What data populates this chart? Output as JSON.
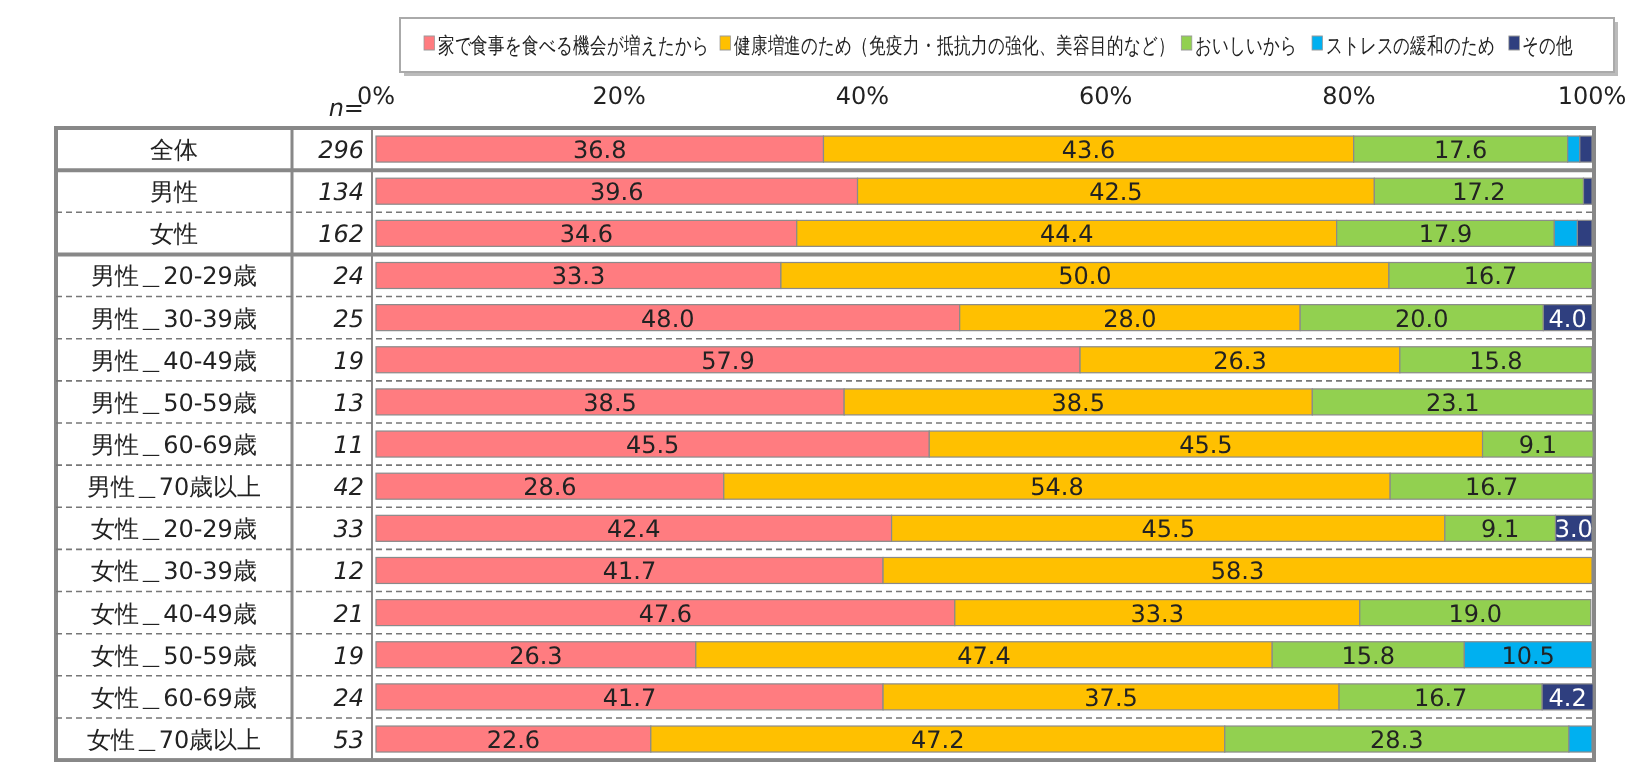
{
  "chart_data": {
    "type": "bar",
    "orientation": "horizontal",
    "stacked": true,
    "legend": "top",
    "grid": false,
    "categories": [
      "全体",
      "男性",
      "女性",
      "男性＿20-29歳",
      "男性＿30-39歳",
      "男性＿40-49歳",
      "男性＿50-59歳",
      "男性＿60-69歳",
      "男性＿70歳以上",
      "女性＿20-29歳",
      "女性＿30-39歳",
      "女性＿40-49歳",
      "女性＿50-59歳",
      "女性＿60-69歳",
      "女性＿70歳以上"
    ],
    "xlim": [
      0,
      100
    ],
    "xticks": [
      {
        "value": 0,
        "label": "0%"
      },
      {
        "value": 20,
        "label": "20%"
      },
      {
        "value": 40,
        "label": "40%"
      },
      {
        "value": 60,
        "label": "60%"
      },
      {
        "value": 80,
        "label": "80%"
      },
      {
        "value": 100,
        "label": "100%"
      }
    ],
    "series": [
      {
        "name": "家で食事を食べる機会が増えたから",
        "color": "#ff7c80",
        "values": [
          36.8,
          39.6,
          34.6,
          33.3,
          48.0,
          57.9,
          38.5,
          45.5,
          28.6,
          42.4,
          41.7,
          47.6,
          26.3,
          41.7,
          22.6
        ],
        "value_labels": [
          "36.8",
          "39.6",
          "34.6",
          "33.3",
          "48.0",
          "57.9",
          "38.5",
          "45.5",
          "28.6",
          "42.4",
          "41.7",
          "47.6",
          "26.3",
          "41.7",
          "22.6"
        ]
      },
      {
        "name": "健康増進のため（免疫力・抵抗力の強化、美容目的など）",
        "color": "#ffc000",
        "values": [
          43.6,
          42.5,
          44.4,
          50.0,
          28.0,
          26.3,
          38.5,
          45.5,
          54.8,
          45.5,
          58.3,
          33.3,
          47.4,
          37.5,
          47.2
        ],
        "value_labels": [
          "43.6",
          "42.5",
          "44.4",
          "50.0",
          "28.0",
          "26.3",
          "38.5",
          "45.5",
          "54.8",
          "45.5",
          "58.3",
          "33.3",
          "47.4",
          "37.5",
          "47.2"
        ]
      },
      {
        "name": "おいしいから",
        "color": "#92d050",
        "values": [
          17.6,
          17.2,
          17.9,
          16.7,
          20.0,
          15.8,
          23.1,
          9.1,
          16.7,
          9.1,
          0,
          19.0,
          15.8,
          16.7,
          28.3
        ],
        "value_labels": [
          "17.6",
          "17.2",
          "17.9",
          "16.7",
          "20.0",
          "15.8",
          "23.1",
          "9.1",
          "16.7",
          "9.1",
          null,
          "19.0",
          "15.8",
          "16.7",
          "28.3"
        ]
      },
      {
        "name": "ストレスの緩和のため",
        "color": "#00b0f0",
        "values": [
          1.0,
          0,
          1.9,
          0,
          0,
          0,
          0,
          0,
          0,
          0,
          0,
          0,
          10.5,
          0,
          1.9
        ],
        "value_labels": [
          null,
          null,
          null,
          null,
          null,
          null,
          null,
          null,
          null,
          null,
          null,
          null,
          "10.5",
          null,
          null
        ]
      },
      {
        "name": "その他",
        "color": "#2f3f7f",
        "values": [
          1.0,
          0.7,
          1.2,
          0,
          4.0,
          0,
          0,
          0,
          0,
          3.0,
          0,
          0,
          0,
          4.2,
          0
        ],
        "value_labels": [
          null,
          null,
          null,
          null,
          "4.0",
          null,
          null,
          null,
          null,
          "3.0",
          null,
          null,
          null,
          "4.2",
          null
        ]
      }
    ],
    "annotations": [
      "n=",
      "296",
      "134",
      "162",
      "24",
      "25",
      "19",
      "13",
      "11",
      "42",
      "33",
      "12",
      "21",
      "19",
      "24",
      "53"
    ]
  }
}
